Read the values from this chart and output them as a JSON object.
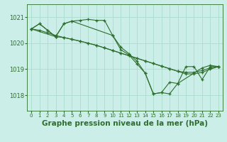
{
  "background_color": "#cceee8",
  "grid_color": "#aaddcc",
  "line_color": "#2d6e2d",
  "marker_color": "#2d6e2d",
  "xlabel": "Graphe pression niveau de la mer (hPa)",
  "xlabel_fontsize": 7.5,
  "ylabel_ticks": [
    1018,
    1019,
    1020,
    1021
  ],
  "xticks": [
    0,
    1,
    2,
    3,
    4,
    5,
    6,
    7,
    8,
    9,
    10,
    11,
    12,
    13,
    14,
    15,
    16,
    17,
    18,
    19,
    20,
    21,
    22,
    23
  ],
  "xlim": [
    -0.5,
    23.5
  ],
  "ylim": [
    1017.4,
    1021.5
  ],
  "series": [
    {
      "x": [
        0,
        1,
        2,
        3,
        4,
        5,
        6,
        7,
        8,
        9,
        10,
        11,
        12,
        13,
        14,
        15,
        16,
        17,
        18,
        19,
        20,
        21,
        22,
        23
      ],
      "y": [
        1020.55,
        1020.75,
        1020.5,
        1020.25,
        1020.75,
        1020.85,
        1020.88,
        1020.92,
        1020.88,
        1020.88,
        1020.3,
        1019.85,
        1019.6,
        1019.3,
        1018.85,
        1018.05,
        1018.1,
        1018.05,
        1018.45,
        1019.1,
        1019.1,
        1018.6,
        1019.1,
        1019.1
      ]
    },
    {
      "x": [
        0,
        1,
        2,
        3,
        4,
        5,
        6,
        7,
        8,
        9,
        10,
        11,
        12,
        13,
        14,
        15,
        16,
        17,
        18,
        19,
        20,
        21,
        22,
        23
      ],
      "y": [
        1020.55,
        1020.5,
        1020.4,
        1020.3,
        1020.22,
        1020.15,
        1020.08,
        1020.0,
        1019.92,
        1019.82,
        1019.72,
        1019.62,
        1019.52,
        1019.42,
        1019.32,
        1019.22,
        1019.12,
        1019.02,
        1018.92,
        1018.82,
        1018.82,
        1018.88,
        1019.0,
        1019.1
      ]
    },
    {
      "x": [
        0,
        3,
        4,
        5,
        10,
        11,
        12,
        13,
        14,
        15,
        16,
        17,
        18,
        21,
        22,
        23
      ],
      "y": [
        1020.55,
        1020.25,
        1020.75,
        1020.85,
        1020.3,
        1019.75,
        1019.55,
        1019.2,
        1018.85,
        1018.05,
        1018.1,
        1018.5,
        1018.45,
        1019.05,
        1019.15,
        1019.1
      ]
    },
    {
      "x": [
        0,
        1,
        2,
        3,
        4,
        5,
        6,
        7,
        8,
        9,
        10,
        11,
        12,
        13,
        14,
        15,
        16,
        17,
        18,
        19,
        20,
        21,
        22,
        23
      ],
      "y": [
        1020.55,
        1020.75,
        1020.5,
        1020.25,
        1020.22,
        1020.15,
        1020.08,
        1020.0,
        1019.92,
        1019.82,
        1019.72,
        1019.62,
        1019.52,
        1019.42,
        1019.32,
        1019.22,
        1019.12,
        1019.02,
        1018.92,
        1018.88,
        1018.88,
        1018.95,
        1019.05,
        1019.1
      ]
    }
  ]
}
